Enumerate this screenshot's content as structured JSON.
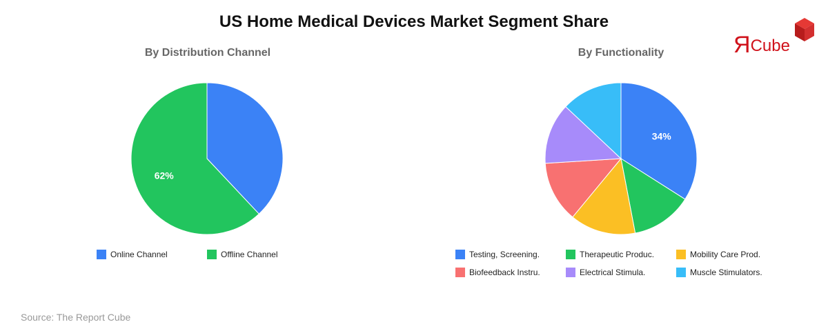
{
  "title": "US Home Medical Devices Market Segment Share",
  "source": "Source: The Report Cube",
  "logo": {
    "mark": "Я",
    "text": "Cube"
  },
  "chart_data": [
    {
      "type": "pie",
      "title": "By Distribution Channel",
      "labels": [
        "Online Channel",
        "Offline Channel"
      ],
      "values": [
        38,
        62
      ],
      "colors": [
        "#3b82f6",
        "#22c55e"
      ],
      "data_labels": [
        "",
        "62%"
      ],
      "legend_position": "bottom"
    },
    {
      "type": "pie",
      "title": "By Functionality",
      "labels": [
        "Testing, Screening.",
        "Therapeutic Produc.",
        "Mobility Care Prod.",
        "Biofeedback Instru.",
        "Electrical Stimula.",
        "Muscle Stimulators."
      ],
      "values": [
        34,
        13,
        14,
        13,
        13,
        13
      ],
      "colors": [
        "#3b82f6",
        "#22c55e",
        "#fbbf24",
        "#f87171",
        "#a78bfa",
        "#38bdf8"
      ],
      "data_labels": [
        "34%",
        "",
        "",
        "",
        "",
        ""
      ],
      "legend_position": "bottom"
    }
  ]
}
